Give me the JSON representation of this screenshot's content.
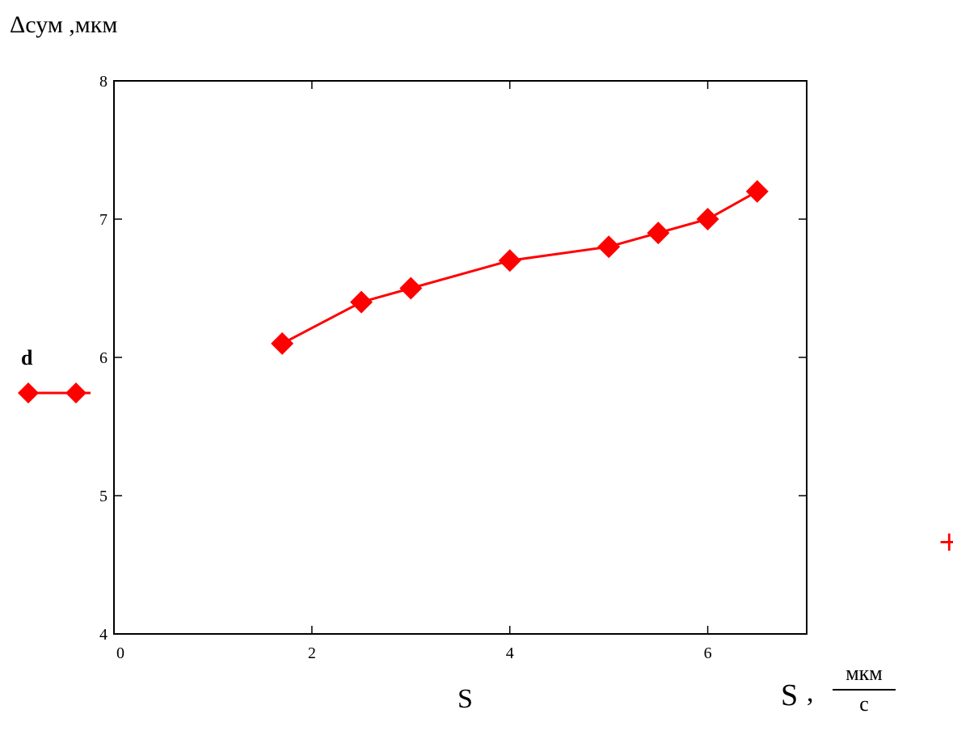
{
  "chart_data": {
    "type": "line",
    "ylabel": "Δсум ,мкм",
    "xlabel": {
      "variable": "S",
      "symbol": "S",
      "separator": ",",
      "unit_numerator": "мкм",
      "unit_denominator": "с"
    },
    "xlim": [
      0,
      7
    ],
    "ylim": [
      4,
      8
    ],
    "x_ticks": [
      0,
      2,
      4,
      6
    ],
    "y_ticks": [
      4,
      5,
      6,
      7,
      8
    ],
    "grid": false,
    "legend_position": "left",
    "series": [
      {
        "name": "d",
        "color": "#ff0000",
        "marker": "diamond",
        "x": [
          1.7,
          2.5,
          3.0,
          4.0,
          5.0,
          5.5,
          6.0,
          6.5
        ],
        "y": [
          6.1,
          6.4,
          6.5,
          6.7,
          6.8,
          6.9,
          7.0,
          7.2
        ]
      }
    ],
    "annotation": "+"
  }
}
